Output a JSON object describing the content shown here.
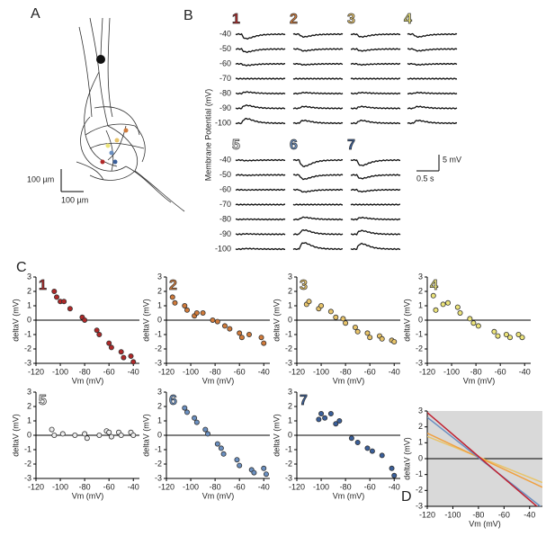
{
  "panels": {
    "A": {
      "label": "A",
      "scale_vertical": "100 µm",
      "scale_horizontal": "100 µm"
    },
    "B": {
      "label": "B",
      "ylabel": "Membrane Potential (mV)",
      "levels": [
        "-40",
        "-50",
        "-60",
        "-70",
        "-80",
        "-90",
        "-100"
      ],
      "cells": [
        "1",
        "2",
        "3",
        "4",
        "5",
        "6",
        "7"
      ],
      "scale_vertical": "5 mV",
      "scale_horizontal": "0.5 s"
    },
    "C": {
      "label": "C"
    },
    "D": {
      "label": "D"
    }
  },
  "chart_data": [
    {
      "type": "scatter",
      "title": "1",
      "color": "#b02828",
      "xlabel": "Vm (mV)",
      "ylabel": "deltaV (mV)",
      "xlim": [
        -120,
        -35
      ],
      "ylim": [
        -3,
        3
      ],
      "xticks": [
        -120,
        -100,
        -80,
        -60,
        -40
      ],
      "yticks": [
        -3,
        -2,
        -1,
        0,
        1,
        2,
        3
      ],
      "x": [
        -105,
        -103,
        -100,
        -97,
        -92,
        -82,
        -80,
        -70,
        -68,
        -60,
        -58,
        -50,
        -48,
        -42,
        -40
      ],
      "values": [
        2.0,
        1.6,
        1.3,
        1.3,
        0.8,
        0.2,
        0,
        -0.7,
        -1.0,
        -1.6,
        -1.9,
        -2.2,
        -2.6,
        -2.5,
        -2.9
      ]
    },
    {
      "type": "scatter",
      "title": "2",
      "color": "#d07a3a",
      "xlabel": "Vm (mV)",
      "ylabel": "deltaV (mV)",
      "xlim": [
        -120,
        -35
      ],
      "ylim": [
        -3,
        3
      ],
      "xticks": [
        -120,
        -100,
        -80,
        -60,
        -40
      ],
      "yticks": [
        -3,
        -2,
        -1,
        0,
        1,
        2,
        3
      ],
      "x": [
        -115,
        -113,
        -105,
        -103,
        -97,
        -95,
        -90,
        -82,
        -78,
        -72,
        -68,
        -60,
        -58,
        -52,
        -42,
        -40
      ],
      "values": [
        1.6,
        1.2,
        1.0,
        0.7,
        0.3,
        0.5,
        0.5,
        0,
        -0.1,
        -0.4,
        -0.6,
        -0.9,
        -1.2,
        -1.0,
        -1.2,
        -1.6
      ]
    },
    {
      "type": "scatter",
      "title": "3",
      "color": "#e8c46a",
      "xlabel": "Vm (mV)",
      "ylabel": "deltaV (mV)",
      "xlim": [
        -120,
        -35
      ],
      "ylim": [
        -3,
        3
      ],
      "xticks": [
        -120,
        -100,
        -80,
        -60,
        -40
      ],
      "yticks": [
        -3,
        -2,
        -1,
        0,
        1,
        2,
        3
      ],
      "x": [
        -112,
        -110,
        -102,
        -100,
        -92,
        -88,
        -82,
        -80,
        -72,
        -70,
        -62,
        -60,
        -52,
        -50,
        -42,
        -40
      ],
      "values": [
        1.1,
        1.3,
        0.8,
        1.0,
        0.6,
        0.2,
        0.1,
        -0.2,
        -0.5,
        -0.8,
        -0.9,
        -1.2,
        -1.1,
        -1.3,
        -1.4,
        -1.5
      ]
    },
    {
      "type": "scatter",
      "title": "4",
      "color": "#ece47a",
      "xlabel": "Vm (mV)",
      "ylabel": "deltaV (mV)",
      "xlim": [
        -120,
        -35
      ],
      "ylim": [
        -3,
        3
      ],
      "xticks": [
        -120,
        -100,
        -80,
        -60,
        -40
      ],
      "yticks": [
        -3,
        -2,
        -1,
        0,
        1,
        2,
        3
      ],
      "x": [
        -115,
        -113,
        -107,
        -103,
        -95,
        -93,
        -85,
        -82,
        -78,
        -65,
        -62,
        -55,
        -52,
        -45,
        -42
      ],
      "values": [
        1.7,
        0.7,
        1.1,
        1.2,
        0.9,
        0.5,
        0.1,
        -0.2,
        -0.4,
        -0.8,
        -1.1,
        -1.0,
        -1.2,
        -1.0,
        -1.2
      ]
    },
    {
      "type": "scatter",
      "title": "5",
      "color": "#eeeeee",
      "xlabel": "Vm (mV)",
      "ylabel": "deltaV (mV)",
      "xlim": [
        -120,
        -35
      ],
      "ylim": [
        -3,
        3
      ],
      "xticks": [
        -120,
        -100,
        -80,
        -60,
        -40
      ],
      "yticks": [
        -3,
        -2,
        -1,
        0,
        1,
        2,
        3
      ],
      "x": [
        -107,
        -105,
        -98,
        -88,
        -80,
        -78,
        -68,
        -62,
        -60,
        -58,
        -52,
        -50,
        -42,
        -40
      ],
      "values": [
        0.4,
        0,
        0.1,
        0,
        0.1,
        -0.2,
        0,
        0.3,
        0.2,
        -0.1,
        0.2,
        0,
        0.2,
        0
      ]
    },
    {
      "type": "scatter",
      "title": "6",
      "color": "#6a8fc0",
      "xlabel": "Vm (mV)",
      "ylabel": "deltaV (mV)",
      "xlim": [
        -120,
        -35
      ],
      "ylim": [
        -3,
        3
      ],
      "xticks": [
        -120,
        -100,
        -80,
        -60,
        -40
      ],
      "yticks": [
        -3,
        -2,
        -1,
        0,
        1,
        2,
        3
      ],
      "x": [
        -105,
        -103,
        -97,
        -95,
        -88,
        -86,
        -78,
        -75,
        -73,
        -62,
        -60,
        -50,
        -48,
        -40,
        -38
      ],
      "values": [
        1.9,
        1.6,
        1.2,
        0.9,
        0.4,
        0.1,
        -0.6,
        -0.9,
        -1.3,
        -1.7,
        -2.1,
        -2.4,
        -2.6,
        -2.3,
        -2.7
      ]
    },
    {
      "type": "scatter",
      "title": "7",
      "color": "#3a5f9a",
      "xlabel": "Vm (mV)",
      "ylabel": "deltaV (mV)",
      "xlim": [
        -120,
        -35
      ],
      "ylim": [
        -3,
        3
      ],
      "xticks": [
        -120,
        -100,
        -80,
        -60,
        -40
      ],
      "yticks": [
        -3,
        -2,
        -1,
        0,
        1,
        2,
        3
      ],
      "x": [
        -102,
        -100,
        -97,
        -92,
        -88,
        -85,
        -75,
        -70,
        -62,
        -58,
        -50,
        -42,
        -40
      ],
      "values": [
        1.1,
        1.5,
        1.2,
        1.5,
        0.8,
        1.0,
        -0.2,
        -0.5,
        -0.9,
        -1.1,
        -1.4,
        -2.3,
        -2.8
      ]
    },
    {
      "type": "line",
      "xlabel": "Vm (mV)",
      "ylabel": "deltaV (mV)",
      "xlim": [
        -120,
        -30
      ],
      "ylim": [
        -3,
        3
      ],
      "xticks": [
        -120,
        -100,
        -80,
        -60,
        -40
      ],
      "yticks": [
        -3,
        -2,
        -1,
        0,
        1,
        2,
        3
      ],
      "plot_background": "#d9d9d9",
      "x": [
        -120,
        -30
      ],
      "series": [
        {
          "color": "#e8c46a",
          "values": [
            1.4,
            -1.5
          ]
        },
        {
          "color": "#f0a040",
          "values": [
            1.6,
            -1.8
          ]
        },
        {
          "color": "#6a8fc0",
          "values": [
            2.6,
            -3.1
          ]
        },
        {
          "color": "#c02030",
          "values": [
            2.9,
            -3.3
          ]
        }
      ]
    }
  ]
}
